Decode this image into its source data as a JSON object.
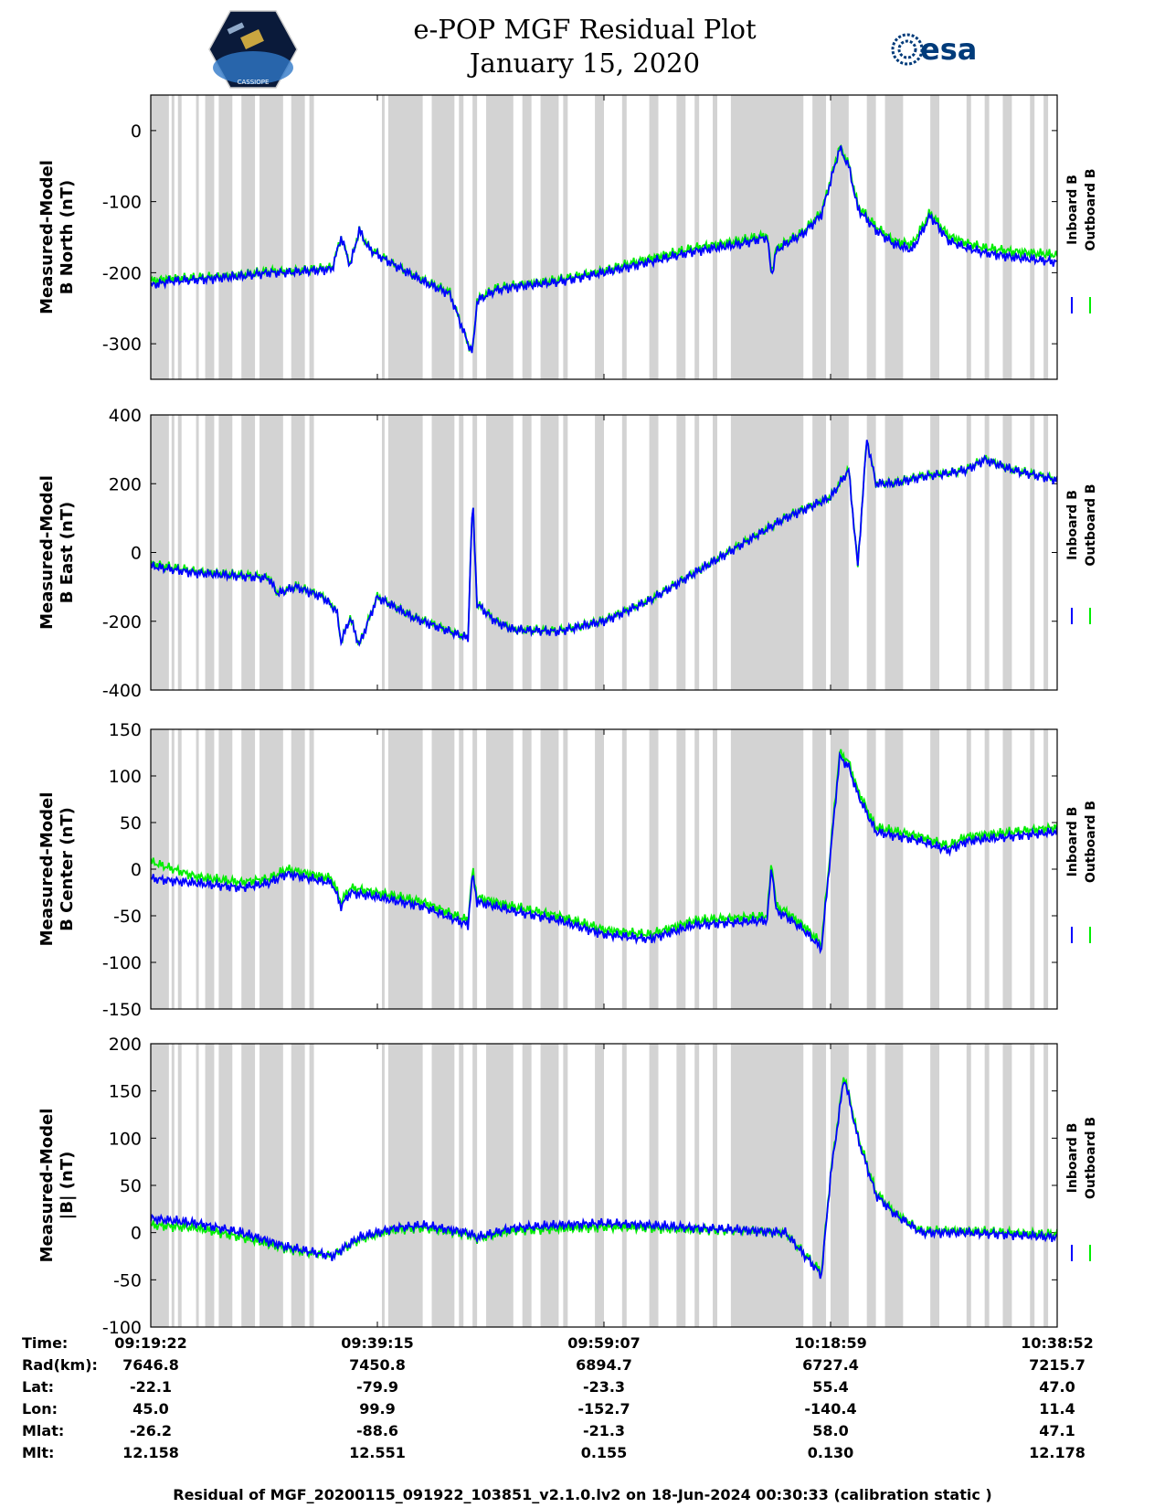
{
  "header": {
    "title_line1": "e-POP MGF Residual Plot",
    "title_line2": "January 15, 2020",
    "left_logo_text": "CASSIOPE",
    "right_logo_text": "esa"
  },
  "colors": {
    "inboard": "#0000ff",
    "outboard": "#00ee00",
    "shade": "#d3d3d3"
  },
  "chart_data": [
    {
      "type": "line",
      "ylabel": [
        "Measured-Model",
        "B North (nT)"
      ],
      "ylim": [
        -350,
        50
      ],
      "yticks": [
        0,
        -100,
        -200,
        -300
      ],
      "legend": [
        "Inboard B",
        "Outboard B"
      ],
      "x": [
        0,
        0.02,
        0.05,
        0.1,
        0.13,
        0.15,
        0.2,
        0.21,
        0.22,
        0.23,
        0.24,
        0.25,
        0.27,
        0.3,
        0.33,
        0.35,
        0.355,
        0.36,
        0.38,
        0.4,
        0.45,
        0.5,
        0.55,
        0.6,
        0.65,
        0.68,
        0.685,
        0.69,
        0.7,
        0.72,
        0.74,
        0.76,
        0.77,
        0.78,
        0.8,
        0.82,
        0.84,
        0.86,
        0.88,
        0.9,
        0.92,
        0.95,
        1.0
      ],
      "series": [
        {
          "name": "Inboard B",
          "values": [
            -218,
            -212,
            -210,
            -205,
            -200,
            -200,
            -195,
            -150,
            -190,
            -140,
            -165,
            -175,
            -190,
            -212,
            -230,
            -300,
            -312,
            -240,
            -225,
            -220,
            -213,
            -200,
            -185,
            -170,
            -160,
            -150,
            -205,
            -170,
            -160,
            -145,
            -118,
            -25,
            -50,
            -110,
            -140,
            -160,
            -168,
            -120,
            -155,
            -165,
            -172,
            -178,
            -185
          ]
        },
        {
          "name": "Outboard B",
          "values": [
            -212,
            -208,
            -207,
            -203,
            -198,
            -198,
            -193,
            -150,
            -188,
            -140,
            -163,
            -173,
            -190,
            -210,
            -228,
            -300,
            -312,
            -238,
            -222,
            -218,
            -210,
            -197,
            -180,
            -165,
            -155,
            -147,
            -200,
            -166,
            -157,
            -142,
            -115,
            -22,
            -47,
            -105,
            -135,
            -155,
            -160,
            -115,
            -148,
            -158,
            -165,
            -170,
            -175
          ]
        }
      ]
    },
    {
      "type": "line",
      "ylabel": [
        "Measured-Model",
        "B East (nT)"
      ],
      "ylim": [
        -400,
        400
      ],
      "yticks": [
        400,
        200,
        0,
        -200,
        -400
      ],
      "legend": [
        "Inboard B",
        "Outboard B"
      ],
      "x": [
        0,
        0.05,
        0.13,
        0.14,
        0.16,
        0.19,
        0.205,
        0.21,
        0.22,
        0.23,
        0.25,
        0.27,
        0.29,
        0.3,
        0.35,
        0.355,
        0.36,
        0.38,
        0.4,
        0.45,
        0.5,
        0.55,
        0.6,
        0.65,
        0.7,
        0.75,
        0.77,
        0.78,
        0.79,
        0.8,
        0.82,
        0.85,
        0.88,
        0.9,
        0.92,
        0.95,
        1.0
      ],
      "series": [
        {
          "name": "Inboard B",
          "values": [
            -40,
            -60,
            -75,
            -120,
            -100,
            -130,
            -170,
            -260,
            -190,
            -270,
            -130,
            -160,
            -190,
            -200,
            -250,
            160,
            -150,
            -200,
            -225,
            -230,
            -200,
            -140,
            -60,
            20,
            100,
            160,
            240,
            -40,
            330,
            200,
            200,
            220,
            230,
            240,
            270,
            240,
            210
          ]
        },
        {
          "name": "Outboard B",
          "values": [
            -32,
            -55,
            -72,
            -118,
            -98,
            -128,
            -168,
            -258,
            -188,
            -268,
            -128,
            -158,
            -188,
            -198,
            -248,
            160,
            -148,
            -198,
            -223,
            -228,
            -198,
            -138,
            -58,
            22,
            102,
            162,
            242,
            -38,
            330,
            202,
            202,
            222,
            232,
            242,
            272,
            242,
            212
          ]
        }
      ]
    },
    {
      "type": "line",
      "ylabel": [
        "Measured-Model",
        "B Center (nT)"
      ],
      "ylim": [
        -150,
        150
      ],
      "yticks": [
        150,
        100,
        50,
        0,
        -50,
        -100,
        -150
      ],
      "legend": [
        "Inboard B",
        "Outboard B"
      ],
      "x": [
        0,
        0.05,
        0.1,
        0.13,
        0.15,
        0.2,
        0.21,
        0.22,
        0.25,
        0.3,
        0.35,
        0.355,
        0.36,
        0.4,
        0.45,
        0.5,
        0.55,
        0.6,
        0.68,
        0.685,
        0.69,
        0.7,
        0.72,
        0.74,
        0.76,
        0.77,
        0.78,
        0.8,
        0.85,
        0.88,
        0.9,
        1.0
      ],
      "series": [
        {
          "name": "Inboard B",
          "values": [
            -10,
            -15,
            -20,
            -15,
            -5,
            -15,
            -40,
            -25,
            -30,
            -40,
            -60,
            -5,
            -35,
            -45,
            -55,
            -70,
            -75,
            -60,
            -55,
            5,
            -45,
            -50,
            -65,
            -85,
            120,
            110,
            80,
            40,
            30,
            20,
            30,
            40
          ]
        },
        {
          "name": "Outboard B",
          "values": [
            8,
            -8,
            -14,
            -10,
            0,
            -10,
            -35,
            -20,
            -25,
            -35,
            -55,
            0,
            -30,
            -40,
            -50,
            -65,
            -70,
            -55,
            -50,
            10,
            -40,
            -45,
            -60,
            -80,
            125,
            115,
            85,
            45,
            35,
            25,
            35,
            45
          ]
        }
      ]
    },
    {
      "type": "line",
      "ylabel": [
        "Measured-Model",
        "|B| (nT)"
      ],
      "ylim": [
        -100,
        200
      ],
      "yticks": [
        200,
        150,
        100,
        50,
        0,
        -50,
        -100
      ],
      "legend": [
        "Inboard B",
        "Outboard B"
      ],
      "x": [
        0,
        0.05,
        0.1,
        0.15,
        0.2,
        0.23,
        0.27,
        0.3,
        0.35,
        0.36,
        0.4,
        0.45,
        0.5,
        0.55,
        0.6,
        0.65,
        0.7,
        0.74,
        0.75,
        0.765,
        0.78,
        0.8,
        0.82,
        0.85,
        0.9,
        1.0
      ],
      "series": [
        {
          "name": "Inboard B",
          "values": [
            15,
            10,
            0,
            -15,
            -25,
            -5,
            5,
            8,
            0,
            -5,
            5,
            8,
            10,
            8,
            5,
            3,
            0,
            -45,
            60,
            165,
            100,
            40,
            20,
            0,
            0,
            -5
          ]
        },
        {
          "name": "Outboard B",
          "values": [
            8,
            5,
            -5,
            -17,
            -25,
            -7,
            3,
            5,
            -2,
            -6,
            2,
            4,
            6,
            5,
            3,
            2,
            0,
            -42,
            62,
            168,
            103,
            43,
            22,
            2,
            2,
            -2
          ]
        }
      ]
    }
  ],
  "time_table": {
    "labels": [
      "Time:",
      "Rad(km):",
      "Lat:",
      "Lon:",
      "Mlat:",
      "Mlt:"
    ],
    "columns": [
      {
        "time": "09:19:22",
        "rad": "7646.8",
        "lat": "-22.1",
        "lon": "45.0",
        "mlat": "-26.2",
        "mlt": "12.158"
      },
      {
        "time": "09:39:15",
        "rad": "7450.8",
        "lat": "-79.9",
        "lon": "99.9",
        "mlat": "-88.6",
        "mlt": "12.551"
      },
      {
        "time": "09:59:07",
        "rad": "6894.7",
        "lat": "-23.3",
        "lon": "-152.7",
        "mlat": "-21.3",
        "mlt": "0.155"
      },
      {
        "time": "10:18:59",
        "rad": "6727.4",
        "lat": "55.4",
        "lon": "-140.4",
        "mlat": "58.0",
        "mlt": "0.130"
      },
      {
        "time": "10:38:52",
        "rad": "7215.7",
        "lat": "47.0",
        "lon": "11.4",
        "mlat": "47.1",
        "mlt": "12.178"
      }
    ]
  },
  "footer": "Residual of MGF_20200115_091922_103851_v2.1.0.lv2 on 18-Jun-2024 00:30:33 (calibration static )"
}
